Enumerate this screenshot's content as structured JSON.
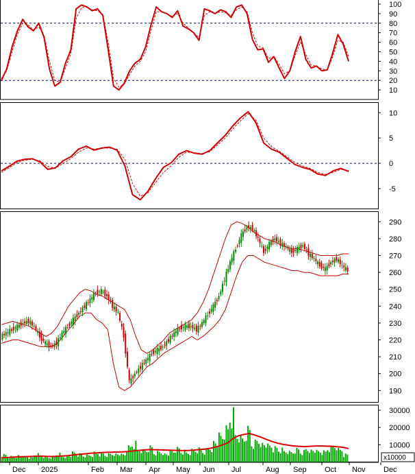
{
  "chart_data": [
    {
      "type": "line",
      "panel": "stochastic-oscillator",
      "ylim": [
        0,
        105
      ],
      "y_ticks": [
        "100",
        "90",
        "80",
        "70",
        "60",
        "50",
        "40",
        "30",
        "20",
        "10"
      ],
      "reference_lines": [
        80,
        20
      ],
      "series": [
        {
          "values": [
            20,
            32,
            55,
            72,
            84,
            76,
            72,
            80,
            65,
            32,
            14,
            18,
            38,
            52,
            95,
            99,
            97,
            93,
            95,
            88,
            52,
            14,
            10,
            17,
            30,
            38,
            42,
            55,
            78,
            97,
            92,
            90,
            86,
            93,
            77,
            74,
            70,
            62,
            95,
            93,
            90,
            94,
            92,
            86,
            97,
            99,
            90,
            63,
            52,
            53,
            39,
            45,
            33,
            22,
            30,
            50,
            66,
            42,
            33,
            35,
            30,
            31,
            48,
            68,
            58,
            40
          ]
        },
        {
          "values": [
            22,
            30,
            50,
            68,
            80,
            78,
            73,
            76,
            67,
            40,
            20,
            18,
            33,
            48,
            85,
            96,
            97,
            94,
            93,
            89,
            60,
            22,
            13,
            16,
            26,
            35,
            40,
            50,
            72,
            92,
            92,
            90,
            87,
            90,
            80,
            75,
            70,
            65,
            88,
            92,
            90,
            92,
            91,
            88,
            94,
            97,
            92,
            70,
            56,
            54,
            43,
            45,
            37,
            27,
            30,
            46,
            60,
            47,
            36,
            35,
            32,
            31,
            44,
            62,
            60,
            45
          ]
        }
      ]
    },
    {
      "type": "line",
      "panel": "macd",
      "ylim": [
        -9,
        12
      ],
      "y_ticks": [
        "10",
        "5",
        "0",
        "-5"
      ],
      "reference_lines": [
        0
      ],
      "series": [
        {
          "values": [
            -1.5,
            -0.6,
            0.4,
            0.8,
            0.9,
            0.3,
            -1.2,
            -0.9,
            0.5,
            1.3,
            2.8,
            3.4,
            2.6,
            3.0,
            3.2,
            2.6,
            -0.5,
            -6.2,
            -7.2,
            -5.5,
            -3.0,
            -0.8,
            0.1,
            1.8,
            2.5,
            2.0,
            1.8,
            2.5,
            4.0,
            5.5,
            7.4,
            9.0,
            10.2,
            8.0,
            4.0,
            2.8,
            2.2,
            1.0,
            -0.2,
            -0.8,
            -1.2,
            -2.1,
            -2.4,
            -1.5,
            -1.0,
            -1.6
          ]
        },
        {
          "values": [
            -1.8,
            -0.9,
            0.1,
            0.6,
            0.8,
            0.5,
            -0.6,
            -1.0,
            0.0,
            0.9,
            2.2,
            3.0,
            2.8,
            3.0,
            3.0,
            2.8,
            0.8,
            -4.0,
            -6.5,
            -5.8,
            -3.8,
            -1.8,
            -0.5,
            1.2,
            2.2,
            2.1,
            1.9,
            2.3,
            3.6,
            5.0,
            6.8,
            8.4,
            9.8,
            8.5,
            5.0,
            3.3,
            2.4,
            1.3,
            0.2,
            -0.5,
            -1.0,
            -1.8,
            -2.2,
            -1.8,
            -1.2,
            -1.4
          ]
        }
      ]
    },
    {
      "type": "candlestick",
      "panel": "price-bollinger",
      "ylim": [
        183,
        296
      ],
      "y_ticks": [
        "290",
        "280",
        "270",
        "260",
        "250",
        "240",
        "230",
        "220",
        "210",
        "200",
        "190"
      ],
      "series": [
        {
          "values": [
            222,
            224,
            226,
            228,
            230,
            231,
            228,
            222,
            218,
            216,
            218,
            224,
            228,
            232,
            236,
            240,
            244,
            248,
            249,
            246,
            240,
            236,
            222,
            195,
            200,
            204,
            208,
            212,
            214,
            216,
            220,
            224,
            227,
            228,
            228,
            226,
            230,
            235,
            240,
            246,
            256,
            266,
            274,
            282,
            287,
            286,
            280,
            272,
            277,
            280,
            277,
            275,
            272,
            274,
            276,
            271,
            268,
            264,
            262,
            266,
            268,
            264,
            261
          ]
        },
        {
          "values": [
            229,
            230,
            231,
            230,
            229,
            228,
            226,
            224,
            222,
            224,
            228,
            234,
            240,
            244,
            248,
            250,
            249,
            247,
            246,
            244,
            242,
            240,
            238,
            232,
            222,
            214,
            212,
            214,
            217,
            220,
            224,
            226,
            228,
            230,
            232,
            236,
            242,
            250,
            260,
            270,
            280,
            288,
            290,
            289,
            287,
            284,
            282,
            280,
            279,
            278,
            276,
            275,
            274,
            274,
            273,
            272,
            271,
            270,
            270,
            270,
            270,
            271,
            271
          ]
        },
        {
          "values": [
            218,
            219,
            220,
            220,
            219,
            218,
            217,
            216,
            216,
            216,
            218,
            222,
            226,
            230,
            234,
            236,
            236,
            232,
            230,
            226,
            206,
            192,
            190,
            192,
            196,
            200,
            204,
            206,
            209,
            212,
            214,
            216,
            218,
            220,
            222,
            220,
            222,
            225,
            228,
            232,
            238,
            248,
            258,
            266,
            270,
            270,
            268,
            266,
            265,
            264,
            263,
            262,
            261,
            261,
            260,
            260,
            259,
            258,
            258,
            258,
            258,
            259,
            259
          ]
        }
      ]
    },
    {
      "type": "bar",
      "panel": "volume",
      "ylim": [
        0,
        33000
      ],
      "y_ticks": [
        "30000",
        "20000",
        "10000"
      ],
      "unit_label": "x10000",
      "series": [
        {
          "values": [
            5000,
            3800,
            4200,
            4600,
            3500,
            3000,
            5200,
            4100,
            3300,
            3600,
            5800,
            4200,
            4500,
            6200,
            5100,
            4400,
            4800,
            6500,
            5900,
            5300,
            6100,
            5600,
            4900,
            9800,
            12500,
            8600,
            7900,
            10300,
            6800,
            7400,
            5600,
            7100,
            8900,
            7200,
            6600,
            8200,
            9100,
            7800,
            10500,
            13900,
            17200,
            21500,
            32000,
            18800,
            16500,
            22400,
            13800,
            15900,
            12600,
            10800,
            9200,
            8400,
            7600,
            6900,
            8800,
            7300,
            9600,
            8200,
            7100,
            6800,
            9400,
            11200,
            8600,
            5200
          ]
        },
        {
          "values": [
            2500,
            2600,
            2800,
            3000,
            3100,
            3200,
            3300,
            3400,
            3300,
            3200,
            3300,
            3500,
            3700,
            4000,
            4400,
            4700,
            5000,
            5200,
            5400,
            5600,
            5700,
            5800,
            5900,
            6100,
            6400,
            6700,
            7000,
            7200,
            7100,
            7000,
            6900,
            6800,
            6700,
            6600,
            6700,
            6900,
            7200,
            7500,
            8000,
            8800,
            9800,
            11000,
            13500,
            15200,
            16000,
            16500,
            15600,
            14500,
            13200,
            12000,
            11000,
            10300,
            9800,
            9300,
            9100,
            8900,
            9100,
            9300,
            9300,
            9200,
            9100,
            8800,
            8500,
            7800
          ]
        }
      ]
    },
    {
      "type": "axis",
      "panel": "time-axis",
      "x_labels": [
        "Dec",
        "2025",
        "Feb",
        "Mar",
        "Apr",
        "May",
        "Jun",
        "Jul",
        "Aug",
        "Sep",
        "Oct",
        "Nov",
        "Dec"
      ]
    }
  ],
  "colors": {
    "main_line": "#d00000",
    "signal_line": "#d00000",
    "reference_line": "#0000cc",
    "bollinger": "#cc0000",
    "candle_up": "#008800",
    "candle_down": "#cc0000",
    "volume_bar": "#00aa00",
    "volume_ma": "#dd0000",
    "panel_border": "#000000"
  }
}
